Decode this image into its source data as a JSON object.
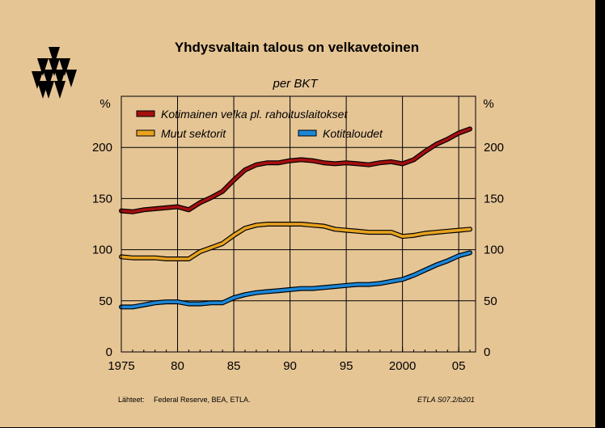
{
  "colors": {
    "background": "#e6c595",
    "grid": "#000000",
    "series_colors": [
      "#a50f0f",
      "#e8a320",
      "#1b86d6"
    ],
    "outline": "#000000"
  },
  "logo_icon": "triangle-pattern-logo",
  "source_label": "Lähteet:",
  "source_text": "Federal Reserve, BEA, ETLA.",
  "code_text": "ETLA S07.2/b201",
  "chart_data": {
    "type": "line",
    "title": "Yhdysvaltain talous on velkavetoinen",
    "subtitle": "per BKT",
    "ylabel_left": "%",
    "ylabel_right": "%",
    "xlim": [
      1975,
      2006.5
    ],
    "ylim": [
      0,
      250
    ],
    "yticks": [
      0,
      50,
      100,
      150,
      200
    ],
    "xticks": [
      1975,
      1980,
      1985,
      1990,
      1995,
      2000,
      2005
    ],
    "xtick_labels": [
      "1975",
      "80",
      "85",
      "90",
      "95",
      "2000",
      "05"
    ],
    "grid": true,
    "legend_placement": "top-left",
    "series": [
      {
        "name": "Kotimainen velka pl. rahoituslaitokset",
        "x": [
          1975,
          1976,
          1977,
          1978,
          1979,
          1980,
          1981,
          1982,
          1983,
          1984,
          1985,
          1986,
          1987,
          1988,
          1989,
          1990,
          1991,
          1992,
          1993,
          1994,
          1995,
          1996,
          1997,
          1998,
          1999,
          2000,
          2001,
          2002,
          2003,
          2004,
          2005,
          2006
        ],
        "values": [
          138,
          137,
          139,
          140,
          141,
          142,
          139,
          146,
          151,
          157,
          168,
          178,
          183,
          185,
          185,
          187,
          188,
          187,
          185,
          184,
          185,
          184,
          183,
          185,
          186,
          184,
          188,
          196,
          203,
          208,
          214,
          218
        ]
      },
      {
        "name": "Muut sektorit",
        "x": [
          1975,
          1976,
          1977,
          1978,
          1979,
          1980,
          1981,
          1982,
          1983,
          1984,
          1985,
          1986,
          1987,
          1988,
          1989,
          1990,
          1991,
          1992,
          1993,
          1994,
          1995,
          1996,
          1997,
          1998,
          1999,
          2000,
          2001,
          2002,
          2003,
          2004,
          2005,
          2006
        ],
        "values": [
          93,
          92,
          92,
          92,
          91,
          91,
          91,
          98,
          102,
          106,
          114,
          121,
          124,
          125,
          125,
          125,
          125,
          124,
          123,
          120,
          119,
          118,
          117,
          117,
          117,
          113,
          114,
          116,
          117,
          118,
          119,
          120
        ]
      },
      {
        "name": "Kotitaloudet",
        "x": [
          1975,
          1976,
          1977,
          1978,
          1979,
          1980,
          1981,
          1982,
          1983,
          1984,
          1985,
          1986,
          1987,
          1988,
          1989,
          1990,
          1991,
          1992,
          1993,
          1994,
          1995,
          1996,
          1997,
          1998,
          1999,
          2000,
          2001,
          2002,
          2003,
          2004,
          2005,
          2006
        ],
        "values": [
          44,
          44,
          46,
          48,
          49,
          49,
          47,
          47,
          48,
          48,
          53,
          56,
          58,
          59,
          60,
          61,
          62,
          62,
          63,
          64,
          65,
          66,
          66,
          67,
          69,
          71,
          75,
          80,
          85,
          89,
          94,
          97
        ]
      }
    ]
  }
}
